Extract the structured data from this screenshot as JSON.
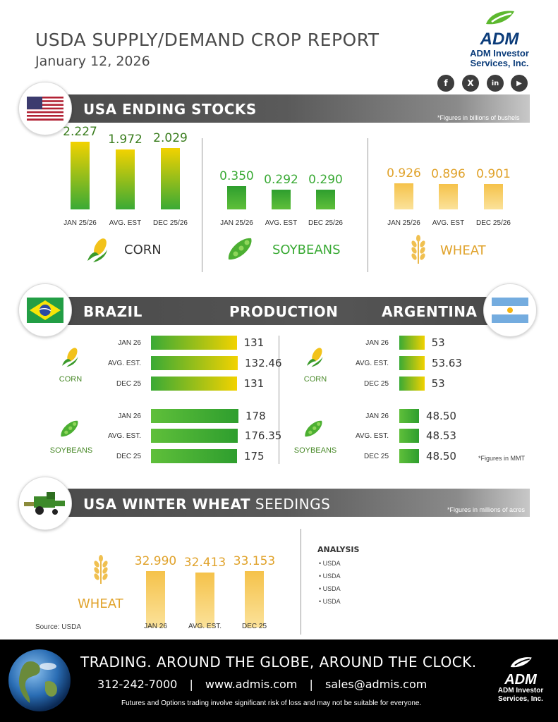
{
  "header": {
    "title": "USDA SUPPLY/DEMAND CROP REPORT",
    "date": "January 12, 2026",
    "logo_text": "ADM",
    "logo_sub1": "ADM Investor",
    "logo_sub2": "Services, Inc.",
    "social": [
      {
        "icon": "facebook-icon",
        "glyph": "f"
      },
      {
        "icon": "x-icon",
        "glyph": "X"
      },
      {
        "icon": "linkedin-icon",
        "glyph": "in"
      },
      {
        "icon": "youtube-icon",
        "glyph": "▶"
      }
    ]
  },
  "colors": {
    "green": "#3aaa35",
    "yellow": "#f2d200",
    "gold": "#f7c948",
    "corn_text": "#3a7d1e",
    "wheat_text": "#e0a22a"
  },
  "ending_stocks": {
    "banner": "USA ENDING STOCKS",
    "note": "*Figures in billions of bushels",
    "flag": "usa-flag-icon"
  },
  "production": {
    "banner_left": "BRAZIL",
    "banner_mid": "PRODUCTION",
    "banner_right": "ARGENTINA",
    "note": "*Figures in MMT"
  },
  "winter_wheat": {
    "banner_bold": "USA WINTER WHEAT",
    "banner_light": " SEEDINGS",
    "note": "*Figures in millions of acres",
    "source": "Source: USDA",
    "analysis_title": "ANALYSIS",
    "analysis_items": [
      "• USDA",
      "• USDA",
      "• USDA",
      "• USDA"
    ]
  },
  "chart_data": [
    {
      "type": "bar",
      "title": "USA ENDING STOCKS - CORN",
      "crop": "CORN",
      "categories": [
        "JAN 25/26",
        "AVG. EST",
        "DEC 25/26"
      ],
      "values": [
        2.227,
        1.972,
        2.029
      ],
      "value_labels": [
        "2.227",
        "1.972",
        "2.029"
      ]
    },
    {
      "type": "bar",
      "title": "USA ENDING STOCKS - SOYBEANS",
      "crop": "SOYBEANS",
      "categories": [
        "JAN 25/26",
        "AVG. EST",
        "DEC 25/26"
      ],
      "values": [
        0.35,
        0.292,
        0.29
      ],
      "value_labels": [
        "0.350",
        "0.292",
        "0.290"
      ]
    },
    {
      "type": "bar",
      "title": "USA ENDING STOCKS - WHEAT",
      "crop": "WHEAT",
      "categories": [
        "JAN 25/26",
        "AVG. EST",
        "DEC 25/26"
      ],
      "values": [
        0.926,
        0.896,
        0.901
      ],
      "value_labels": [
        "0.926",
        "0.896",
        "0.901"
      ]
    },
    {
      "type": "bar",
      "orientation": "horizontal",
      "title": "BRAZIL PRODUCTION - CORN",
      "crop": "CORN",
      "categories": [
        "JAN 26",
        "AVG. EST.",
        "DEC 25"
      ],
      "values": [
        131,
        132.46,
        131
      ],
      "value_labels": [
        "131",
        "132.46",
        "131"
      ]
    },
    {
      "type": "bar",
      "orientation": "horizontal",
      "title": "BRAZIL PRODUCTION - SOYBEANS",
      "crop": "SOYBEANS",
      "categories": [
        "JAN 26",
        "AVG. EST.",
        "DEC 25"
      ],
      "values": [
        178,
        176.35,
        175
      ],
      "value_labels": [
        "178",
        "176.35",
        "175"
      ]
    },
    {
      "type": "bar",
      "orientation": "horizontal",
      "title": "ARGENTINA PRODUCTION - CORN",
      "crop": "CORN",
      "categories": [
        "JAN 26",
        "AVG. EST.",
        "DEC 25"
      ],
      "values": [
        53,
        53.63,
        53
      ],
      "value_labels": [
        "53",
        "53.63",
        "53"
      ]
    },
    {
      "type": "bar",
      "orientation": "horizontal",
      "title": "ARGENTINA PRODUCTION - SOYBEANS",
      "crop": "SOYBEANS",
      "categories": [
        "JAN 26",
        "AVG. EST.",
        "DEC 25"
      ],
      "values": [
        48.5,
        48.53,
        48.5
      ],
      "value_labels": [
        "48.50",
        "48.53",
        "48.50"
      ]
    },
    {
      "type": "bar",
      "title": "USA WINTER WHEAT SEEDINGS",
      "crop": "WHEAT",
      "categories": [
        "JAN 26",
        "AVG. EST.",
        "DEC 25"
      ],
      "values": [
        32.99,
        32.413,
        33.153
      ],
      "value_labels": [
        "32.990",
        "32.413",
        "33.153"
      ]
    }
  ],
  "footer": {
    "tagline": "TRADING. AROUND THE GLOBE, AROUND THE CLOCK.",
    "phone": "312-242-7000",
    "website": "www.admis.com",
    "email": "sales@admis.com",
    "separator": "|",
    "disclaimer": "Futures and Options trading involve significant risk of loss and may not be suitable for everyone.",
    "logo_text": "ADM",
    "logo_sub1": "ADM Investor",
    "logo_sub2": "Services, Inc."
  }
}
